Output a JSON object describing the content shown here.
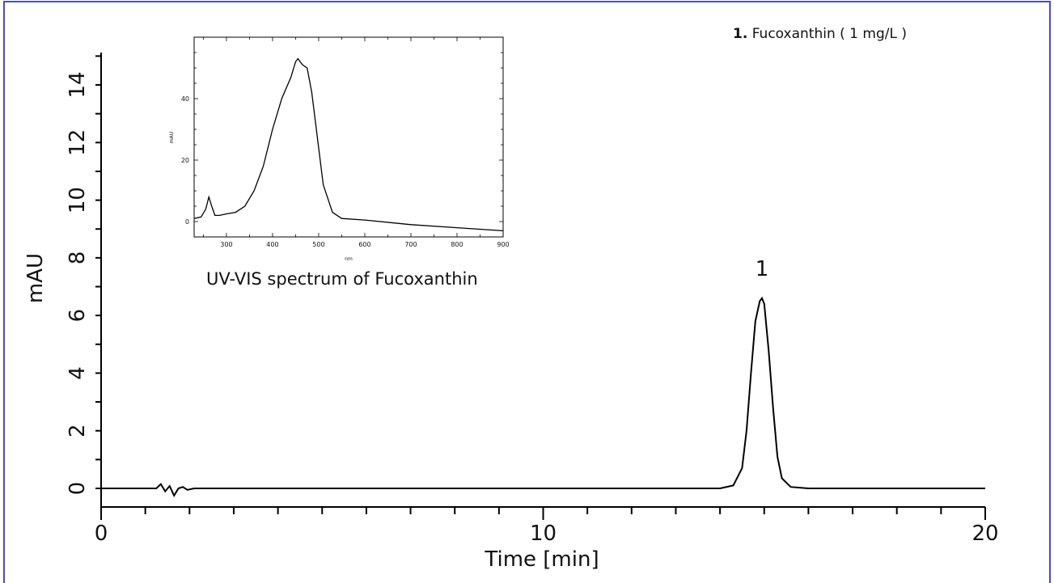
{
  "chart_data": [
    {
      "type": "line",
      "xlabel": "Time [min]",
      "ylabel": "mAU",
      "xlim": [
        0,
        20
      ],
      "ylim": [
        -0.4,
        15.6
      ],
      "x_ticks": [
        {
          "v": 0,
          "label": "0"
        },
        {
          "v": 10,
          "label": "10"
        },
        {
          "v": 20,
          "label": "20"
        }
      ],
      "y_ticks": [
        {
          "v": 0,
          "label": "0"
        },
        {
          "v": 2,
          "label": "2"
        },
        {
          "v": 4,
          "label": "4"
        },
        {
          "v": 6,
          "label": "6"
        },
        {
          "v": 8,
          "label": "8"
        },
        {
          "v": 10,
          "label": "10"
        },
        {
          "v": 12,
          "label": "12"
        },
        {
          "v": 14,
          "label": "14"
        }
      ],
      "series": [
        {
          "x": [
            0,
            1.25,
            1.35,
            1.45,
            1.55,
            1.65,
            1.75,
            1.85,
            1.95,
            2.1,
            5,
            10,
            14,
            14.3,
            14.5,
            14.6,
            14.7,
            14.8,
            14.9,
            14.95,
            15.0,
            15.1,
            15.2,
            15.3,
            15.4,
            15.6,
            16,
            20
          ],
          "y": [
            0,
            0,
            0.15,
            -0.1,
            0.08,
            -0.25,
            0.0,
            0.05,
            -0.05,
            0,
            0,
            0,
            0,
            0.1,
            0.7,
            2.0,
            4.0,
            5.8,
            6.5,
            6.6,
            6.4,
            4.8,
            2.8,
            1.1,
            0.35,
            0.05,
            0,
            0
          ]
        }
      ],
      "peak_labels": [
        {
          "x": 14.95,
          "y": 6.6,
          "text": "1"
        }
      ]
    },
    {
      "type": "line",
      "title": "UV-VIS spectrum of Fucoxanthin",
      "xlabel": "nm",
      "ylabel": "mAU",
      "xlim": [
        230,
        900
      ],
      "ylim": [
        -5,
        60
      ],
      "x_ticks": [
        300,
        400,
        500,
        600,
        700,
        800,
        900
      ],
      "y_ticks": [
        0,
        20,
        40
      ],
      "series": [
        {
          "x": [
            230,
            245,
            255,
            262,
            268,
            275,
            285,
            300,
            320,
            340,
            360,
            380,
            400,
            420,
            440,
            450,
            455,
            465,
            475,
            485,
            495,
            510,
            530,
            550,
            600,
            700,
            800,
            900
          ],
          "y": [
            1,
            1.5,
            4,
            8,
            5,
            2,
            2,
            2.5,
            3,
            5,
            10,
            18,
            30,
            40,
            47,
            52,
            53,
            51,
            50,
            42,
            30,
            12,
            3,
            1,
            0.5,
            -1,
            -2,
            -3
          ]
        }
      ]
    }
  ],
  "legend": {
    "number": "1.",
    "text": "Fucoxanthin ( 1 mg/L )"
  }
}
